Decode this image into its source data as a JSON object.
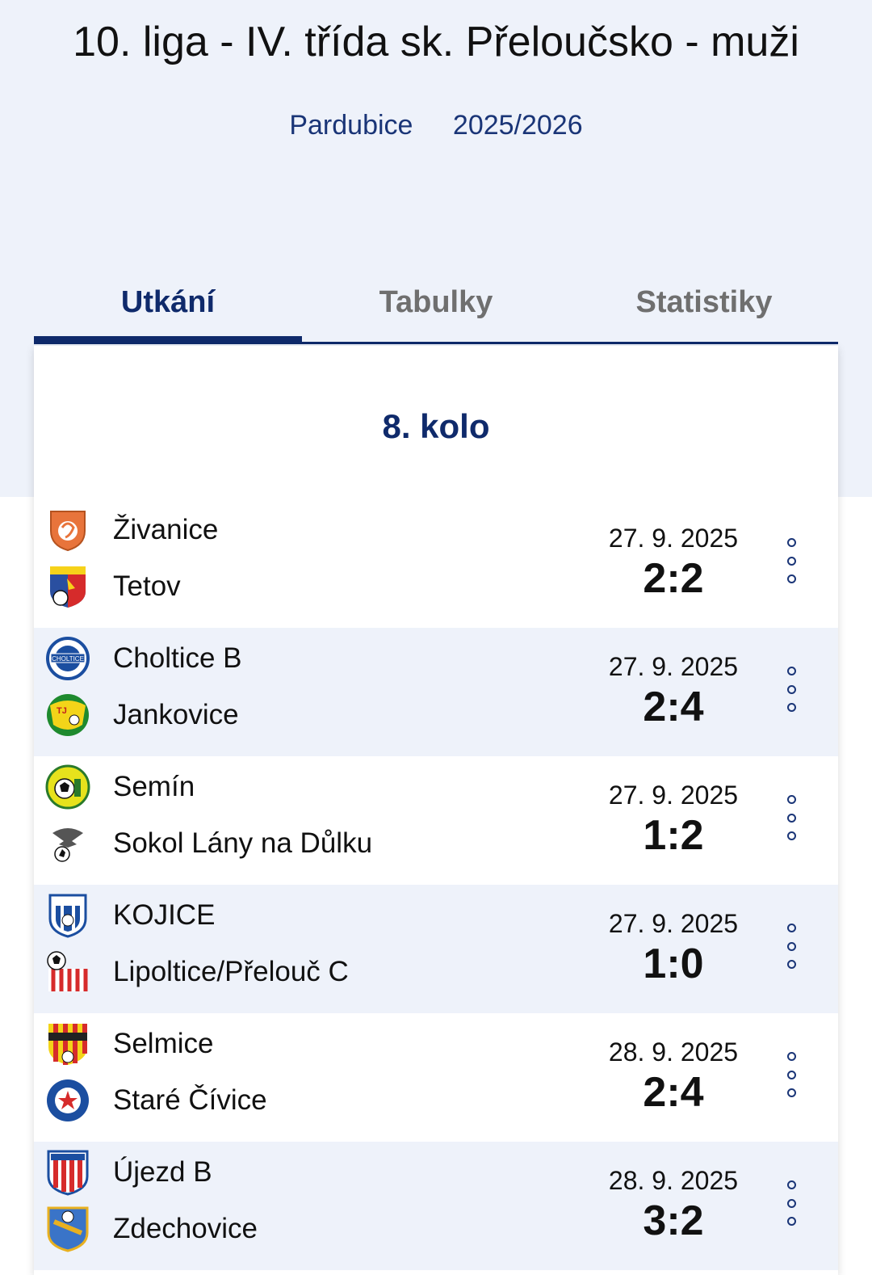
{
  "header": {
    "title": "10. liga - IV. třída sk. Přeloučsko - muži",
    "region": "Pardubice",
    "season": "2025/2026"
  },
  "tabs": [
    {
      "label": "Utkání",
      "active": true
    },
    {
      "label": "Tabulky",
      "active": false
    },
    {
      "label": "Statistiky",
      "active": false
    }
  ],
  "round": {
    "title": "8. kolo"
  },
  "matches": [
    {
      "home": "Živanice",
      "away": "Tetov",
      "date": "27. 9. 2025",
      "score": "2:2"
    },
    {
      "home": "Choltice B",
      "away": "Jankovice",
      "date": "27. 9. 2025",
      "score": "2:4"
    },
    {
      "home": "Semín",
      "away": "Sokol Lány na Důlku",
      "date": "27. 9. 2025",
      "score": "1:2"
    },
    {
      "home": "KOJICE",
      "away": "Lipoltice/Přelouč C",
      "date": "27. 9. 2025",
      "score": "1:0"
    },
    {
      "home": "Selmice",
      "away": "Staré Čívice",
      "date": "28. 9. 2025",
      "score": "2:4"
    },
    {
      "home": "Újezd B",
      "away": "Zdechovice",
      "date": "28. 9. 2025",
      "score": "3:2"
    }
  ],
  "colors": {
    "accent": "#0f2a6b",
    "header_bg": "#eef2fa",
    "alt_row": "#eef2fa"
  }
}
